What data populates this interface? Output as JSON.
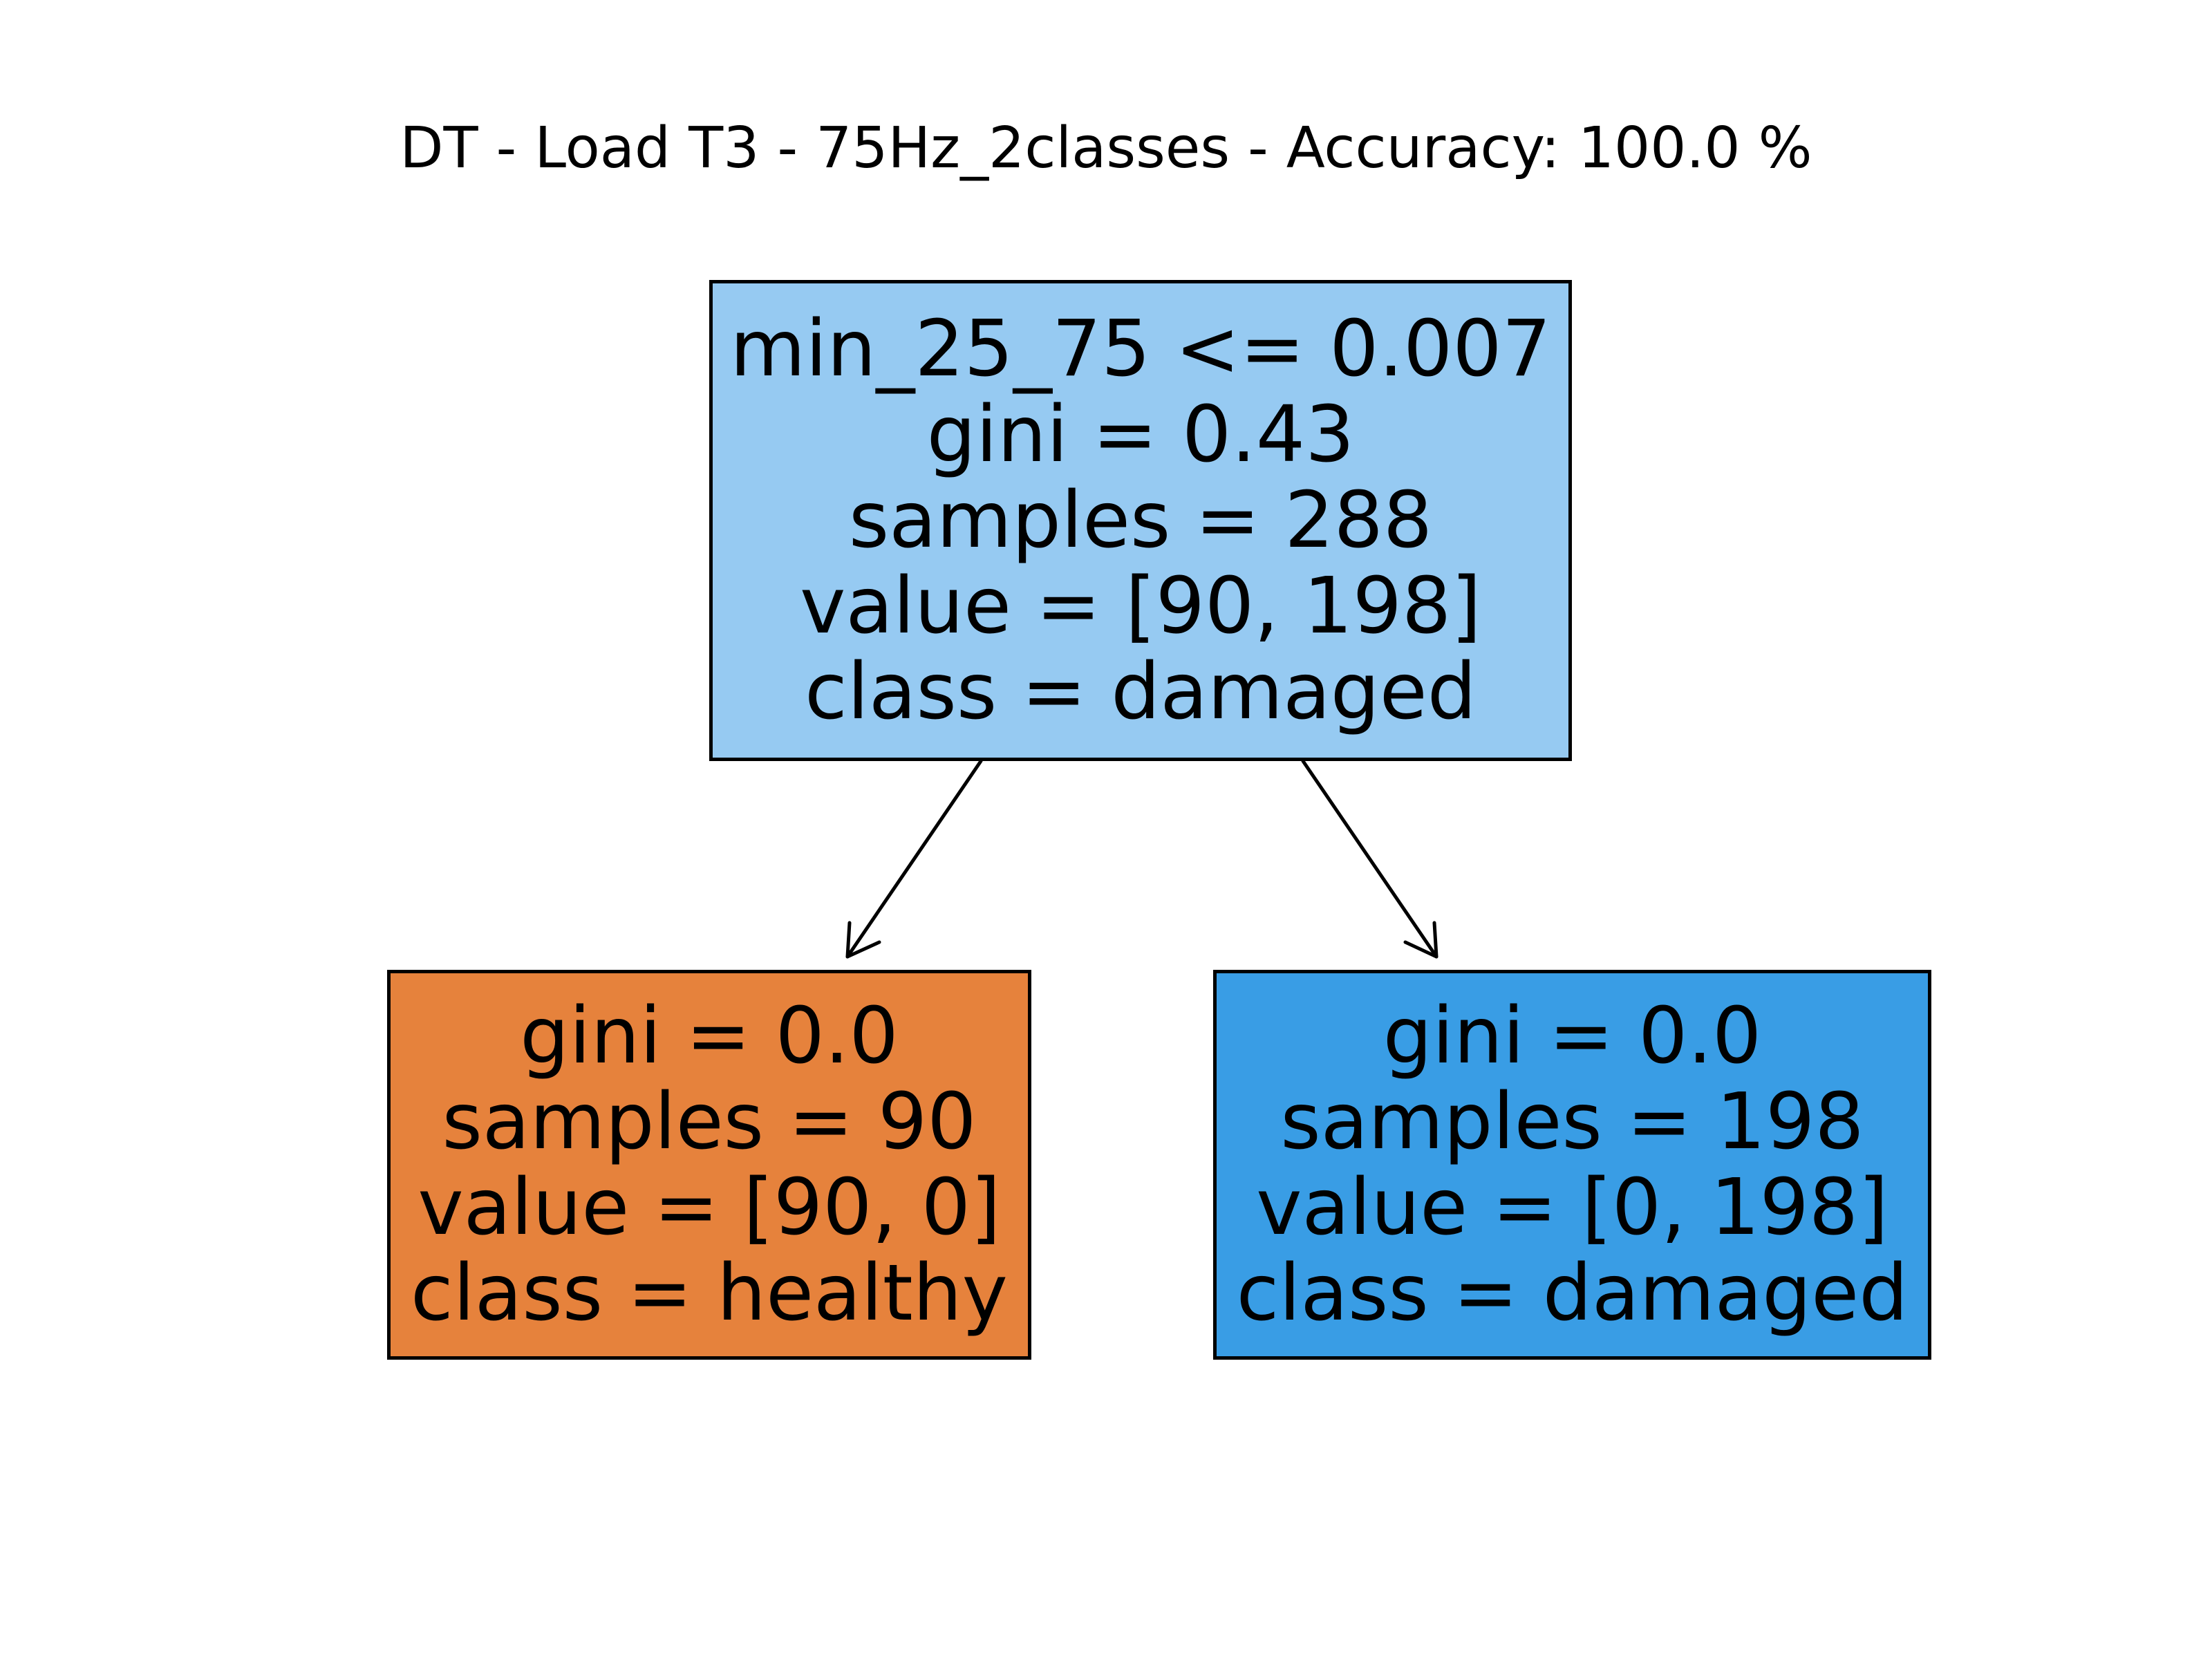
{
  "title": "DT - Load T3 - 75Hz_2classes - Accuracy: 100.0 %",
  "colors": {
    "root": "#96caf2",
    "left": "#e6823c",
    "right": "#399de5",
    "border": "#000000"
  },
  "tree": {
    "root": {
      "split": "min_25_75 <= 0.007",
      "gini": "gini = 0.43",
      "samples": "samples = 288",
      "value": "value = [90, 198]",
      "class": "class = damaged"
    },
    "left": {
      "gini": "gini = 0.0",
      "samples": "samples = 90",
      "value": "value = [90, 0]",
      "class": "class = healthy"
    },
    "right": {
      "gini": "gini = 0.0",
      "samples": "samples = 198",
      "value": "value = [0, 198]",
      "class": "class = damaged"
    }
  }
}
